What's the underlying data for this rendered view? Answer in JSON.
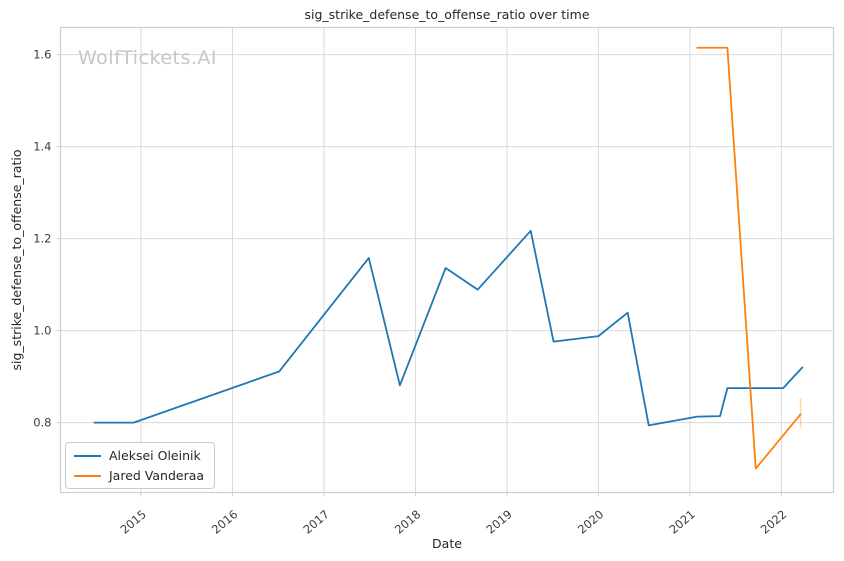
{
  "figure": {
    "title": "sig_strike_defense_to_offense_ratio over time",
    "watermark": "WolfTickets.AI",
    "xlabel": "Date",
    "ylabel": "sig_strike_defense_to_offense_ratio"
  },
  "legend": {
    "entries": [
      {
        "label": "Aleksei Oleinik",
        "color": "#1f77b4"
      },
      {
        "label": "Jared Vanderaa",
        "color": "#ff7f0e"
      }
    ]
  },
  "chart_data": {
    "type": "line",
    "title": "sig_strike_defense_to_offense_ratio over time",
    "xlabel": "Date",
    "ylabel": "sig_strike_defense_to_offense_ratio",
    "xlim": [
      2014.12,
      2022.57
    ],
    "ylim": [
      0.648,
      1.659
    ],
    "x_ticks": [
      2015,
      2016,
      2017,
      2018,
      2019,
      2020,
      2021,
      2022
    ],
    "y_ticks": [
      0.8,
      1.0,
      1.2,
      1.4,
      1.6
    ],
    "grid": true,
    "legend_position": "lower left",
    "series": [
      {
        "name": "Aleksei Oleinik",
        "color": "#1f77b4",
        "x": [
          2014.49,
          2014.92,
          2016.51,
          2017.49,
          2017.83,
          2018.33,
          2018.68,
          2019.26,
          2019.51,
          2020.0,
          2020.32,
          2020.55,
          2021.08,
          2021.33,
          2021.41,
          2022.02,
          2022.23
        ],
        "y": [
          0.8,
          0.8,
          0.911,
          1.158,
          0.881,
          1.136,
          1.089,
          1.217,
          0.976,
          0.988,
          1.039,
          0.794,
          0.813,
          0.814,
          0.875,
          0.875,
          0.92
        ]
      },
      {
        "name": "Jared Vanderaa",
        "color": "#ff7f0e",
        "x": [
          2021.08,
          2021.41,
          2021.72,
          2022.21
        ],
        "y": [
          1.615,
          1.615,
          0.7,
          0.818
        ],
        "error_bar": {
          "x": 2022.21,
          "y_low": 0.789,
          "y_high": 0.852,
          "opacity": 0.35
        }
      }
    ],
    "colors": {
      "grid": "#d9d9d9",
      "border": "#cfcfcf",
      "background": "#ffffff",
      "tick_text": "#3d3d3d",
      "watermark": "#c6c6c6"
    }
  }
}
